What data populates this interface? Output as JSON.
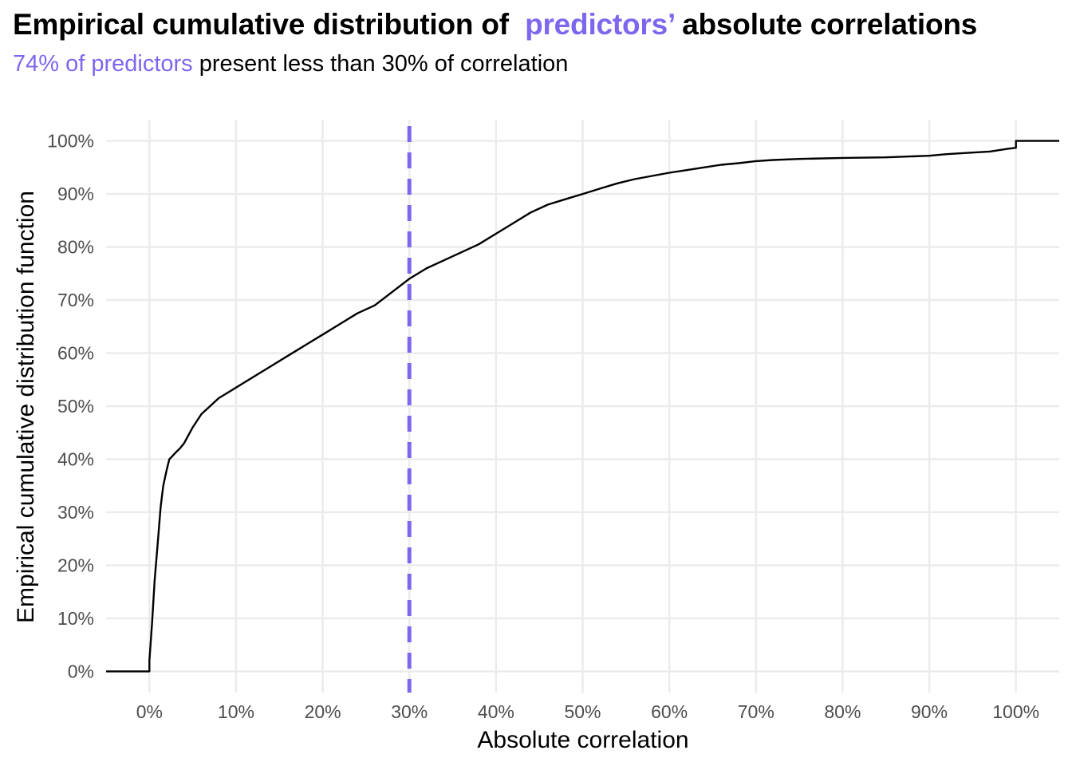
{
  "title": {
    "part1": "Empirical cumulative distribution of",
    "highlight": "predictors’",
    "part2": "absolute correlations"
  },
  "subtitle": {
    "highlight": "74% of predictors",
    "rest": "present less than 30% of correlation"
  },
  "colors": {
    "accent": "#7B68EE",
    "line": "#000000",
    "grid": "#ebebeb"
  },
  "chart_data": {
    "type": "line",
    "step": true,
    "xlabel": "Absolute correlation",
    "ylabel": "Empirical cumulative distribution function",
    "xlim": [
      -0.05,
      1.05
    ],
    "ylim": [
      -0.04,
      1.04
    ],
    "x_ticks": [
      0,
      0.1,
      0.2,
      0.3,
      0.4,
      0.5,
      0.6,
      0.7,
      0.8,
      0.9,
      1.0
    ],
    "x_tick_labels": [
      "0%",
      "10%",
      "20%",
      "30%",
      "40%",
      "50%",
      "60%",
      "70%",
      "80%",
      "90%",
      "100%"
    ],
    "y_ticks": [
      0,
      0.1,
      0.2,
      0.3,
      0.4,
      0.5,
      0.6,
      0.7,
      0.8,
      0.9,
      1.0
    ],
    "y_tick_labels": [
      "0%",
      "10%",
      "20%",
      "30%",
      "40%",
      "50%",
      "60%",
      "70%",
      "80%",
      "90%",
      "100%"
    ],
    "grid": true,
    "reference_line": {
      "x": 0.3,
      "style": "dashed"
    },
    "series": [
      {
        "x": [
          -0.05,
          0.0,
          0.0,
          0.003,
          0.006,
          0.01,
          0.013,
          0.016,
          0.02,
          0.023,
          0.026,
          0.03,
          0.035,
          0.04,
          0.05,
          0.06,
          0.07,
          0.08,
          0.09,
          0.1,
          0.12,
          0.14,
          0.16,
          0.18,
          0.2,
          0.22,
          0.24,
          0.26,
          0.28,
          0.3,
          0.32,
          0.34,
          0.36,
          0.38,
          0.4,
          0.42,
          0.44,
          0.46,
          0.48,
          0.5,
          0.52,
          0.54,
          0.56,
          0.58,
          0.6,
          0.62,
          0.64,
          0.66,
          0.68,
          0.7,
          0.72,
          0.75,
          0.8,
          0.85,
          0.9,
          0.92,
          0.95,
          0.97,
          0.99,
          1.0,
          1.0,
          1.05
        ],
        "y": [
          0.0,
          0.0,
          0.02,
          0.09,
          0.17,
          0.25,
          0.31,
          0.35,
          0.38,
          0.4,
          0.405,
          0.412,
          0.42,
          0.43,
          0.46,
          0.485,
          0.5,
          0.515,
          0.525,
          0.535,
          0.555,
          0.575,
          0.595,
          0.615,
          0.635,
          0.655,
          0.675,
          0.69,
          0.715,
          0.74,
          0.76,
          0.775,
          0.79,
          0.805,
          0.825,
          0.845,
          0.865,
          0.88,
          0.89,
          0.9,
          0.91,
          0.92,
          0.928,
          0.934,
          0.94,
          0.945,
          0.95,
          0.955,
          0.958,
          0.962,
          0.964,
          0.966,
          0.968,
          0.969,
          0.972,
          0.975,
          0.978,
          0.98,
          0.985,
          0.987,
          1.0,
          1.0
        ]
      }
    ]
  }
}
